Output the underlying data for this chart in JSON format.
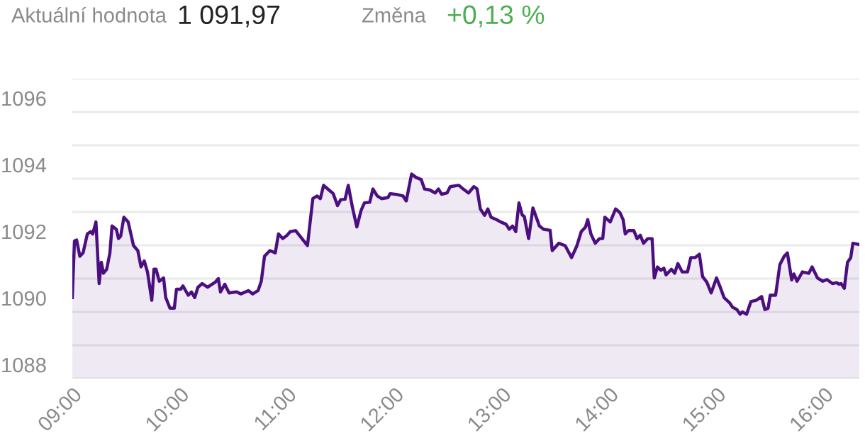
{
  "chart_data": {
    "type": "area",
    "annotations": [
      "Aktuální hodnota",
      "1 091,97",
      "Změna",
      "+0,13 %"
    ],
    "xlim": [
      9,
      16.33
    ],
    "xticks": [
      {
        "value": 9,
        "label": "09:00"
      },
      {
        "value": 10,
        "label": "10:00"
      },
      {
        "value": 11,
        "label": "11:00"
      },
      {
        "value": 12,
        "label": "12:00"
      },
      {
        "value": 13,
        "label": "13:00"
      },
      {
        "value": 14,
        "label": "14:00"
      },
      {
        "value": 15,
        "label": "15:00"
      },
      {
        "value": 16,
        "label": "16:00"
      }
    ],
    "ylim": [
      1088,
      1097
    ],
    "yticks": [
      1088,
      {
        "value": 1089,
        "label": null
      },
      1090,
      {
        "value": 1091,
        "label": null
      },
      1092,
      {
        "value": 1093,
        "label": null
      },
      1094,
      {
        "value": 1095,
        "label": null
      },
      1096,
      {
        "value": 1097,
        "label": null
      }
    ],
    "grid": "y",
    "series": [
      {
        "color": "#4b0f80",
        "x": [
          9.0,
          9.02,
          9.04,
          9.07,
          9.1,
          9.14,
          9.17,
          9.19,
          9.22,
          9.25,
          9.27,
          9.29,
          9.32,
          9.35,
          9.37,
          9.41,
          9.43,
          9.45,
          9.48,
          9.52,
          9.57,
          9.61,
          9.64,
          9.67,
          9.7,
          9.74,
          9.76,
          9.78,
          9.81,
          9.85,
          9.87,
          9.91,
          9.95,
          9.97,
          10.01,
          10.03,
          10.08,
          10.11,
          10.14,
          10.17,
          10.21,
          10.26,
          10.33,
          10.36,
          10.38,
          10.42,
          10.46,
          10.53,
          10.57,
          10.64,
          10.68,
          10.73,
          10.76,
          10.79,
          10.84,
          10.89,
          10.92,
          10.96,
          11.0,
          11.03,
          11.08,
          11.19,
          11.24,
          11.28,
          11.31,
          11.34,
          11.39,
          11.43,
          11.47,
          11.5,
          11.54,
          11.57,
          11.61,
          11.65,
          11.69,
          11.72,
          11.77,
          11.8,
          11.84,
          11.88,
          11.94,
          11.96,
          12.03,
          12.08,
          12.11,
          12.16,
          12.2,
          12.25,
          12.28,
          12.33,
          12.38,
          12.41,
          12.44,
          12.49,
          12.52,
          12.6,
          12.64,
          12.69,
          12.74,
          12.77,
          12.8,
          12.84,
          12.87,
          12.9,
          12.95,
          12.99,
          13.04,
          13.07,
          13.1,
          13.13,
          13.16,
          13.19,
          13.21,
          13.25,
          13.29,
          13.35,
          13.39,
          13.45,
          13.47,
          13.53,
          13.59,
          13.65,
          13.7,
          13.74,
          13.78,
          13.8,
          13.83,
          13.87,
          13.91,
          13.94,
          13.96,
          14.01,
          14.06,
          14.1,
          14.13,
          14.15,
          14.18,
          14.23,
          14.26,
          14.29,
          14.32,
          14.36,
          14.4,
          14.42,
          14.45,
          14.48,
          14.51,
          14.53,
          14.58,
          14.61,
          14.64,
          14.68,
          14.73,
          14.76,
          14.8,
          14.84,
          14.87,
          14.91,
          14.95,
          15.0,
          15.03,
          15.07,
          15.12,
          15.15,
          15.19,
          15.22,
          15.24,
          15.28,
          15.32,
          15.37,
          15.42,
          15.45,
          15.48,
          15.5,
          15.55,
          15.59,
          15.63,
          15.66,
          15.7,
          15.72,
          15.75,
          15.8,
          15.86,
          15.89,
          15.94,
          15.99,
          16.03,
          16.08,
          16.12,
          16.14,
          16.16,
          16.19,
          16.22,
          16.25,
          16.27,
          16.33
        ],
        "values": [
          1090.43,
          1092.13,
          1092.16,
          1091.67,
          1091.77,
          1092.34,
          1092.41,
          1092.34,
          1092.7,
          1090.85,
          1091.49,
          1091.16,
          1091.28,
          1091.77,
          1092.58,
          1092.48,
          1092.2,
          1092.27,
          1092.84,
          1092.7,
          1091.99,
          1091.84,
          1091.35,
          1091.53,
          1091.2,
          1090.35,
          1091.28,
          1091.28,
          1090.92,
          1091.02,
          1090.43,
          1090.11,
          1090.11,
          1090.68,
          1090.68,
          1090.78,
          1090.5,
          1090.6,
          1090.43,
          1090.74,
          1090.85,
          1090.74,
          1090.89,
          1091.0,
          1090.6,
          1090.83,
          1090.57,
          1090.6,
          1090.54,
          1090.64,
          1090.54,
          1090.64,
          1090.92,
          1091.67,
          1091.84,
          1091.77,
          1092.34,
          1092.2,
          1092.3,
          1092.41,
          1092.44,
          1091.99,
          1093.4,
          1093.48,
          1093.4,
          1093.8,
          1093.66,
          1093.55,
          1093.19,
          1093.37,
          1093.38,
          1093.8,
          1093.12,
          1092.55,
          1093.05,
          1093.27,
          1093.29,
          1093.69,
          1093.48,
          1093.4,
          1093.43,
          1093.55,
          1093.52,
          1093.48,
          1093.33,
          1094.14,
          1094.04,
          1093.97,
          1093.69,
          1093.66,
          1093.57,
          1093.69,
          1093.53,
          1093.57,
          1093.76,
          1093.8,
          1093.69,
          1093.57,
          1093.76,
          1093.69,
          1093.09,
          1092.9,
          1093.09,
          1092.84,
          1092.77,
          1092.7,
          1092.63,
          1092.48,
          1092.58,
          1092.41,
          1093.27,
          1092.91,
          1092.86,
          1092.2,
          1093.12,
          1092.58,
          1092.48,
          1092.45,
          1091.84,
          1092.06,
          1091.99,
          1091.63,
          1091.99,
          1092.41,
          1092.55,
          1092.77,
          1092.34,
          1092.06,
          1092.2,
          1092.2,
          1092.84,
          1092.7,
          1093.09,
          1092.98,
          1092.77,
          1092.34,
          1092.44,
          1092.44,
          1092.2,
          1092.3,
          1092.06,
          1092.2,
          1092.2,
          1091.02,
          1091.35,
          1091.25,
          1091.31,
          1091.11,
          1091.28,
          1091.16,
          1091.45,
          1091.2,
          1091.2,
          1091.63,
          1091.63,
          1091.73,
          1091.06,
          1090.89,
          1090.57,
          1091.02,
          1090.78,
          1090.43,
          1090.28,
          1090.14,
          1090.07,
          1089.93,
          1090.0,
          1089.93,
          1090.31,
          1090.35,
          1090.46,
          1090.07,
          1090.11,
          1090.5,
          1090.5,
          1091.42,
          1091.67,
          1091.77,
          1090.96,
          1091.14,
          1090.92,
          1091.2,
          1091.16,
          1091.35,
          1091.02,
          1090.92,
          1090.97,
          1090.85,
          1090.88,
          1090.83,
          1090.85,
          1090.71,
          1091.49,
          1091.63,
          1092.06,
          1092.02
        ]
      }
    ]
  }
}
